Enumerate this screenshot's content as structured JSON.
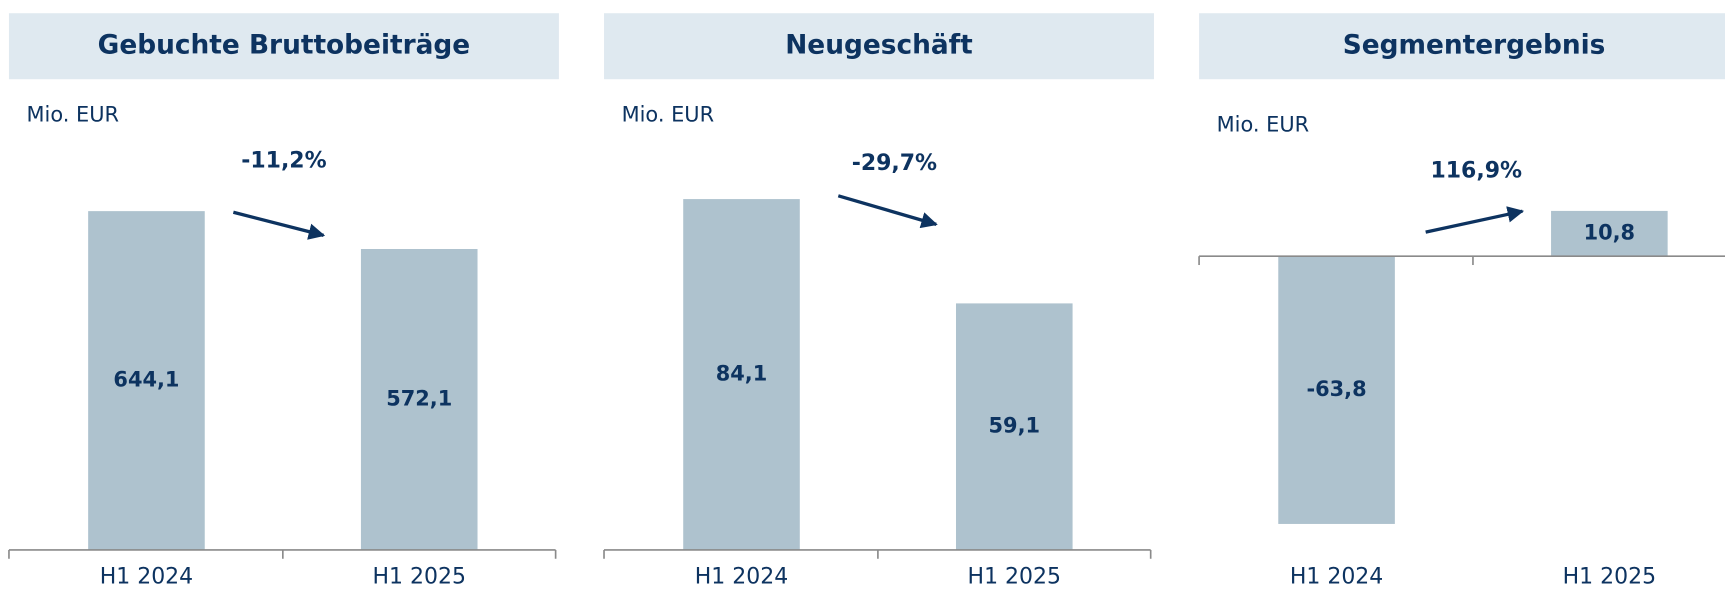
{
  "chart_data": [
    {
      "type": "bar",
      "title": "Gebuchte Bruttobeiträge",
      "unit_label": "Mio. EUR",
      "categories": [
        "H1 2024",
        "H1 2025"
      ],
      "values": [
        644.1,
        572.1
      ],
      "value_labels": [
        "644,1",
        "572,1"
      ],
      "color": "#aec2ce",
      "ylim": [
        0,
        690
      ],
      "annotation": "-11,2%"
    },
    {
      "type": "bar",
      "title": "Neugeschäft",
      "unit_label": "Mio. EUR",
      "categories": [
        "H1 2024",
        "H1 2025"
      ],
      "values": [
        84.1,
        59.1
      ],
      "value_labels": [
        "84,1",
        "59,1"
      ],
      "color": "#aec2ce",
      "ylim": [
        0,
        87
      ],
      "annotation": "-29,7%"
    },
    {
      "type": "bar",
      "title": "Segmentergebnis",
      "unit_label": "Mio. EUR",
      "categories": [
        "H1 2024",
        "H1 2025"
      ],
      "values": [
        -63.8,
        10.8
      ],
      "value_labels": [
        "-63,8",
        "10,8"
      ],
      "color": "#aec2ce",
      "ylim": [
        -70,
        16.5
      ],
      "annotation": "116,9%"
    }
  ]
}
